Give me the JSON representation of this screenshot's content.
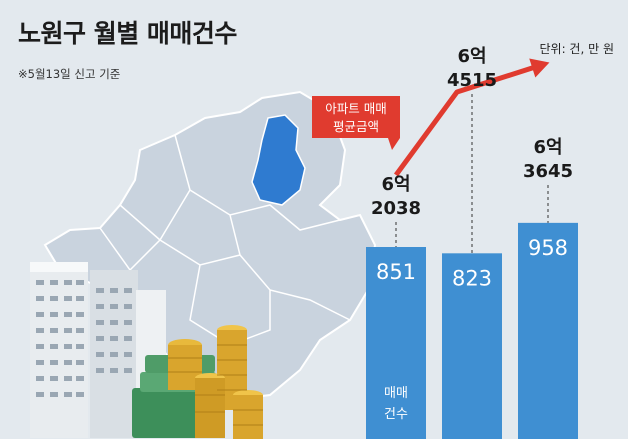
{
  "header": {
    "title": "노원구 월별 매매건수",
    "note": "※5월13일 신고 기준",
    "unit": "단위: 건, 만 원"
  },
  "annotation": {
    "line1": "아파트 매매",
    "line2": "평균금액"
  },
  "bar_legend": {
    "line1": "매매",
    "line2": "건수"
  },
  "colors": {
    "bar": "#3f8fd2",
    "line": "#e03b2f",
    "map": "#c5d0dc",
    "highlight": "#2f7bd0"
  },
  "chart_data": {
    "type": "bar",
    "title": "노원구 월별 매매건수",
    "series": [
      {
        "values": [
          851,
          823,
          958
        ],
        "labels": [
          "851",
          "823",
          "958"
        ]
      },
      {
        "values": [
          62038,
          64515,
          63645
        ],
        "labels": [
          [
            "6억",
            "2038"
          ],
          [
            "6억",
            "4515"
          ],
          [
            "6억",
            "3645"
          ]
        ]
      }
    ]
  }
}
